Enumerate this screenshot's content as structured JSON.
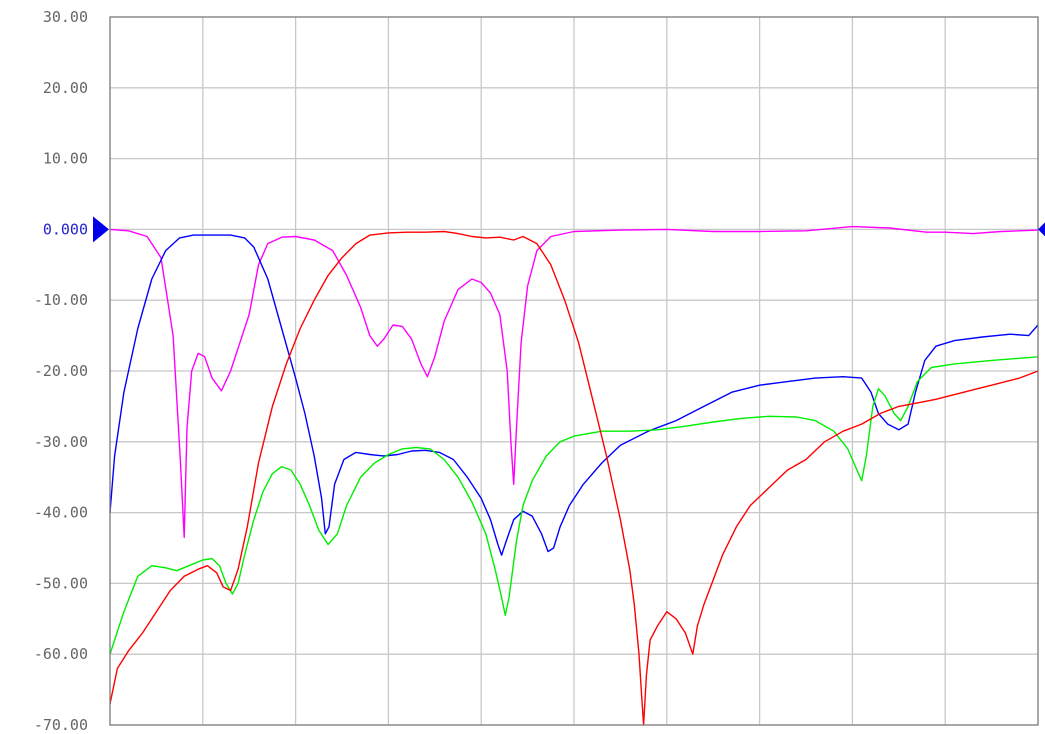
{
  "chart_data": {
    "type": "line",
    "title": "",
    "xlabel": "",
    "ylabel": "",
    "ylim": [
      -70,
      30
    ],
    "xlim": [
      0,
      10
    ],
    "grid": true,
    "y_ticks": [
      {
        "value": 30,
        "label": "30.00"
      },
      {
        "value": 20,
        "label": "20.00"
      },
      {
        "value": 10,
        "label": "10.00"
      },
      {
        "value": 0,
        "label": "0.000",
        "reference": true
      },
      {
        "value": -10,
        "label": "-10.00"
      },
      {
        "value": -20,
        "label": "-20.00"
      },
      {
        "value": -30,
        "label": "-30.00"
      },
      {
        "value": -40,
        "label": "-40.00"
      },
      {
        "value": -50,
        "label": "-50.00"
      },
      {
        "value": -60,
        "label": "-60.00"
      },
      {
        "value": -70,
        "label": "-70.00"
      }
    ],
    "x_divisions": 10,
    "reference_marker": {
      "value": 0,
      "color": "#0000ee"
    },
    "series": [
      {
        "color": "#ff00ff",
        "points": [
          [
            0,
            0
          ],
          [
            0.2,
            -0.2
          ],
          [
            0.4,
            -1
          ],
          [
            0.55,
            -4
          ],
          [
            0.68,
            -15
          ],
          [
            0.76,
            -33
          ],
          [
            0.8,
            -43.5
          ],
          [
            0.83,
            -28
          ],
          [
            0.88,
            -20
          ],
          [
            0.95,
            -17.5
          ],
          [
            1.02,
            -18
          ],
          [
            1.1,
            -21
          ],
          [
            1.2,
            -22.8
          ],
          [
            1.3,
            -20
          ],
          [
            1.4,
            -16
          ],
          [
            1.5,
            -12
          ],
          [
            1.6,
            -5
          ],
          [
            1.7,
            -2
          ],
          [
            1.85,
            -1.1
          ],
          [
            2.0,
            -1
          ],
          [
            2.2,
            -1.5
          ],
          [
            2.4,
            -3
          ],
          [
            2.55,
            -6.5
          ],
          [
            2.7,
            -11
          ],
          [
            2.8,
            -15
          ],
          [
            2.88,
            -16.5
          ],
          [
            2.95,
            -15.5
          ],
          [
            3.05,
            -13.5
          ],
          [
            3.15,
            -13.7
          ],
          [
            3.25,
            -15.5
          ],
          [
            3.35,
            -19
          ],
          [
            3.42,
            -20.8
          ],
          [
            3.5,
            -18
          ],
          [
            3.6,
            -13
          ],
          [
            3.75,
            -8.5
          ],
          [
            3.9,
            -7
          ],
          [
            4.0,
            -7.5
          ],
          [
            4.1,
            -9
          ],
          [
            4.2,
            -12
          ],
          [
            4.28,
            -20
          ],
          [
            4.32,
            -30
          ],
          [
            4.35,
            -36
          ],
          [
            4.38,
            -28
          ],
          [
            4.43,
            -16
          ],
          [
            4.5,
            -8
          ],
          [
            4.6,
            -3
          ],
          [
            4.75,
            -1
          ],
          [
            5.0,
            -0.3
          ],
          [
            5.5,
            -0.1
          ],
          [
            6.0,
            0
          ],
          [
            6.5,
            -0.3
          ],
          [
            7.0,
            -0.3
          ],
          [
            7.5,
            -0.2
          ],
          [
            8.0,
            0.4
          ],
          [
            8.4,
            0.2
          ],
          [
            8.8,
            -0.4
          ],
          [
            9.0,
            -0.4
          ],
          [
            9.3,
            -0.6
          ],
          [
            9.6,
            -0.3
          ],
          [
            10,
            -0.1
          ]
        ]
      },
      {
        "color": "#0000ff",
        "points": [
          [
            0,
            -40
          ],
          [
            0.05,
            -32
          ],
          [
            0.15,
            -23
          ],
          [
            0.3,
            -14
          ],
          [
            0.45,
            -7
          ],
          [
            0.6,
            -3
          ],
          [
            0.75,
            -1.2
          ],
          [
            0.9,
            -0.8
          ],
          [
            1.1,
            -0.8
          ],
          [
            1.3,
            -0.8
          ],
          [
            1.45,
            -1.2
          ],
          [
            1.55,
            -2.5
          ],
          [
            1.7,
            -7
          ],
          [
            1.85,
            -14
          ],
          [
            2.0,
            -21
          ],
          [
            2.1,
            -26
          ],
          [
            2.2,
            -32
          ],
          [
            2.28,
            -38
          ],
          [
            2.32,
            -43
          ],
          [
            2.36,
            -42
          ],
          [
            2.42,
            -36
          ],
          [
            2.52,
            -32.5
          ],
          [
            2.65,
            -31.5
          ],
          [
            2.8,
            -31.8
          ],
          [
            2.95,
            -32
          ],
          [
            3.1,
            -31.8
          ],
          [
            3.25,
            -31.3
          ],
          [
            3.4,
            -31.2
          ],
          [
            3.55,
            -31.5
          ],
          [
            3.7,
            -32.5
          ],
          [
            3.85,
            -35
          ],
          [
            4.0,
            -38
          ],
          [
            4.1,
            -41
          ],
          [
            4.18,
            -44.5
          ],
          [
            4.22,
            -46
          ],
          [
            4.27,
            -44
          ],
          [
            4.35,
            -41
          ],
          [
            4.45,
            -39.8
          ],
          [
            4.55,
            -40.5
          ],
          [
            4.65,
            -43
          ],
          [
            4.72,
            -45.5
          ],
          [
            4.78,
            -45
          ],
          [
            4.85,
            -42
          ],
          [
            4.95,
            -39
          ],
          [
            5.1,
            -36
          ],
          [
            5.3,
            -33
          ],
          [
            5.5,
            -30.5
          ],
          [
            5.8,
            -28.5
          ],
          [
            6.1,
            -27
          ],
          [
            6.4,
            -25
          ],
          [
            6.7,
            -23
          ],
          [
            7.0,
            -22
          ],
          [
            7.3,
            -21.5
          ],
          [
            7.6,
            -21
          ],
          [
            7.9,
            -20.8
          ],
          [
            8.1,
            -21
          ],
          [
            8.2,
            -23
          ],
          [
            8.28,
            -26
          ],
          [
            8.38,
            -27.5
          ],
          [
            8.5,
            -28.3
          ],
          [
            8.6,
            -27.5
          ],
          [
            8.68,
            -23
          ],
          [
            8.78,
            -18.5
          ],
          [
            8.9,
            -16.5
          ],
          [
            9.1,
            -15.7
          ],
          [
            9.4,
            -15.2
          ],
          [
            9.7,
            -14.8
          ],
          [
            9.9,
            -15
          ],
          [
            10,
            -13.5
          ]
        ]
      },
      {
        "color": "#00ee00",
        "points": [
          [
            0,
            -60
          ],
          [
            0.05,
            -58
          ],
          [
            0.15,
            -54
          ],
          [
            0.3,
            -49
          ],
          [
            0.45,
            -47.5
          ],
          [
            0.6,
            -47.8
          ],
          [
            0.72,
            -48.2
          ],
          [
            0.85,
            -47.5
          ],
          [
            1.0,
            -46.7
          ],
          [
            1.1,
            -46.5
          ],
          [
            1.18,
            -47.5
          ],
          [
            1.25,
            -50
          ],
          [
            1.32,
            -51.5
          ],
          [
            1.38,
            -50
          ],
          [
            1.45,
            -46
          ],
          [
            1.55,
            -41
          ],
          [
            1.65,
            -37
          ],
          [
            1.75,
            -34.5
          ],
          [
            1.85,
            -33.5
          ],
          [
            1.95,
            -34
          ],
          [
            2.05,
            -36
          ],
          [
            2.15,
            -39
          ],
          [
            2.25,
            -42.5
          ],
          [
            2.35,
            -44.5
          ],
          [
            2.45,
            -43
          ],
          [
            2.55,
            -39
          ],
          [
            2.7,
            -35
          ],
          [
            2.85,
            -33
          ],
          [
            3.0,
            -31.8
          ],
          [
            3.15,
            -31
          ],
          [
            3.3,
            -30.8
          ],
          [
            3.45,
            -31
          ],
          [
            3.6,
            -32.5
          ],
          [
            3.75,
            -35
          ],
          [
            3.9,
            -38.5
          ],
          [
            4.05,
            -43
          ],
          [
            4.15,
            -48
          ],
          [
            4.22,
            -52
          ],
          [
            4.26,
            -54.5
          ],
          [
            4.3,
            -52
          ],
          [
            4.38,
            -44
          ],
          [
            4.45,
            -39
          ],
          [
            4.55,
            -35.5
          ],
          [
            4.7,
            -32
          ],
          [
            4.85,
            -30
          ],
          [
            5.0,
            -29.2
          ],
          [
            5.3,
            -28.5
          ],
          [
            5.6,
            -28.5
          ],
          [
            5.9,
            -28.3
          ],
          [
            6.2,
            -27.8
          ],
          [
            6.5,
            -27.2
          ],
          [
            6.8,
            -26.7
          ],
          [
            7.1,
            -26.4
          ],
          [
            7.4,
            -26.5
          ],
          [
            7.6,
            -27
          ],
          [
            7.8,
            -28.5
          ],
          [
            7.95,
            -31
          ],
          [
            8.05,
            -34
          ],
          [
            8.1,
            -35.5
          ],
          [
            8.15,
            -32
          ],
          [
            8.22,
            -25
          ],
          [
            8.28,
            -22.5
          ],
          [
            8.35,
            -23.5
          ],
          [
            8.45,
            -26
          ],
          [
            8.52,
            -27
          ],
          [
            8.6,
            -25
          ],
          [
            8.7,
            -21.5
          ],
          [
            8.85,
            -19.5
          ],
          [
            9.1,
            -19
          ],
          [
            9.5,
            -18.5
          ],
          [
            9.8,
            -18.2
          ],
          [
            10,
            -18
          ]
        ]
      },
      {
        "color": "#ff0000",
        "points": [
          [
            0,
            -67
          ],
          [
            0.08,
            -62
          ],
          [
            0.2,
            -59.5
          ],
          [
            0.35,
            -57
          ],
          [
            0.5,
            -54
          ],
          [
            0.65,
            -51
          ],
          [
            0.8,
            -49
          ],
          [
            0.95,
            -48
          ],
          [
            1.05,
            -47.5
          ],
          [
            1.15,
            -48.5
          ],
          [
            1.22,
            -50.5
          ],
          [
            1.3,
            -51
          ],
          [
            1.38,
            -48
          ],
          [
            1.48,
            -42
          ],
          [
            1.6,
            -33
          ],
          [
            1.75,
            -25
          ],
          [
            1.9,
            -19
          ],
          [
            2.05,
            -14
          ],
          [
            2.2,
            -10
          ],
          [
            2.35,
            -6.5
          ],
          [
            2.5,
            -4
          ],
          [
            2.65,
            -2
          ],
          [
            2.8,
            -0.8
          ],
          [
            3.0,
            -0.5
          ],
          [
            3.2,
            -0.4
          ],
          [
            3.4,
            -0.4
          ],
          [
            3.6,
            -0.3
          ],
          [
            3.75,
            -0.6
          ],
          [
            3.9,
            -1
          ],
          [
            4.05,
            -1.2
          ],
          [
            4.2,
            -1.1
          ],
          [
            4.35,
            -1.5
          ],
          [
            4.45,
            -1
          ],
          [
            4.6,
            -2
          ],
          [
            4.75,
            -5
          ],
          [
            4.9,
            -10
          ],
          [
            5.05,
            -16
          ],
          [
            5.2,
            -24
          ],
          [
            5.35,
            -32
          ],
          [
            5.5,
            -41
          ],
          [
            5.6,
            -48
          ],
          [
            5.65,
            -53
          ],
          [
            5.7,
            -60
          ],
          [
            5.73,
            -66
          ],
          [
            5.75,
            -70
          ],
          [
            5.78,
            -63
          ],
          [
            5.82,
            -58
          ],
          [
            5.9,
            -56
          ],
          [
            6.0,
            -54
          ],
          [
            6.1,
            -55
          ],
          [
            6.2,
            -57
          ],
          [
            6.28,
            -60
          ],
          [
            6.33,
            -56
          ],
          [
            6.4,
            -53
          ],
          [
            6.5,
            -49.5
          ],
          [
            6.6,
            -46
          ],
          [
            6.75,
            -42
          ],
          [
            6.9,
            -39
          ],
          [
            7.1,
            -36.5
          ],
          [
            7.3,
            -34
          ],
          [
            7.5,
            -32.5
          ],
          [
            7.7,
            -30
          ],
          [
            7.9,
            -28.5
          ],
          [
            8.1,
            -27.5
          ],
          [
            8.3,
            -26
          ],
          [
            8.5,
            -25
          ],
          [
            8.7,
            -24.5
          ],
          [
            8.9,
            -24
          ],
          [
            9.2,
            -23
          ],
          [
            9.5,
            -22
          ],
          [
            9.8,
            -21
          ],
          [
            10,
            -20
          ]
        ]
      }
    ]
  }
}
